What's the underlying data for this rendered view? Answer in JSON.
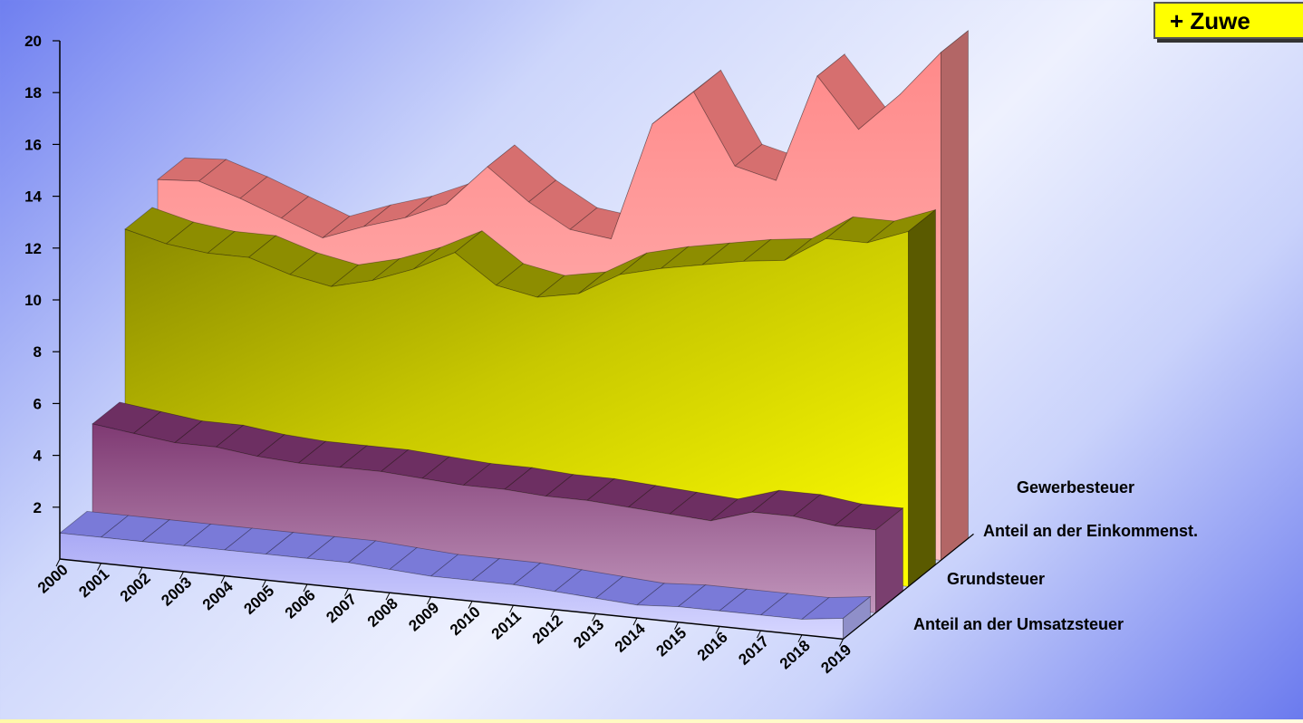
{
  "callout": {
    "text": "+ Zuwe"
  },
  "chart_data": {
    "type": "area",
    "title": "",
    "xlabel": "",
    "ylabel": "",
    "ylim": [
      0,
      20
    ],
    "y_ticks": [
      "20",
      "18",
      "16",
      "14",
      "12",
      "10",
      "8",
      "6",
      "4",
      "2"
    ],
    "categories": [
      "2000",
      "2001",
      "2002",
      "2003",
      "2004",
      "2005",
      "2006",
      "2007",
      "2008",
      "2009",
      "2010",
      "2011",
      "2012",
      "2013",
      "2014",
      "2015",
      "2016",
      "2017",
      "2018",
      "2019"
    ],
    "series": [
      {
        "name": "Anteil an der Umsatzsteuer",
        "color": "#b8b9ff",
        "values": [
          1.0,
          1.0,
          1.0,
          1.0,
          1.0,
          1.0,
          1.0,
          1.0,
          0.9,
          0.8,
          0.8,
          0.8,
          0.7,
          0.6,
          0.5,
          0.6,
          0.6,
          0.6,
          0.6,
          0.8
        ]
      },
      {
        "name": "Grundsteuer",
        "color": "#a56d9b",
        "values": [
          4.2,
          4.0,
          3.8,
          3.8,
          3.6,
          3.5,
          3.5,
          3.5,
          3.4,
          3.3,
          3.3,
          3.2,
          3.2,
          3.1,
          3.0,
          2.9,
          3.4,
          3.4,
          3.2,
          3.2
        ]
      },
      {
        "name": "Anteil an der Einkommenst.",
        "color": "#d0d000",
        "values": [
          10.7,
          10.3,
          10.1,
          10.1,
          9.6,
          9.3,
          9.7,
          10.3,
          11.1,
          10.0,
          9.7,
          10.0,
          10.9,
          11.3,
          11.6,
          11.9,
          12.1,
          13.1,
          13.1,
          13.7
        ]
      },
      {
        "name": "Gewerbesteuer",
        "color": "#ff8c8c",
        "values": [
          11.6,
          11.7,
          11.2,
          10.6,
          10.0,
          10.6,
          11.1,
          11.8,
          13.4,
          12.2,
          11.3,
          11.1,
          15.7,
          17.1,
          14.4,
          14.0,
          18.2,
          16.3,
          17.8,
          19.6
        ]
      }
    ],
    "depth_labels": [
      "Gewerbesteuer",
      "Anteil an der Einkommenst.",
      "Grundsteuer",
      "Anteil an der Umsatzsteuer"
    ],
    "legend": "none",
    "grid": false
  }
}
